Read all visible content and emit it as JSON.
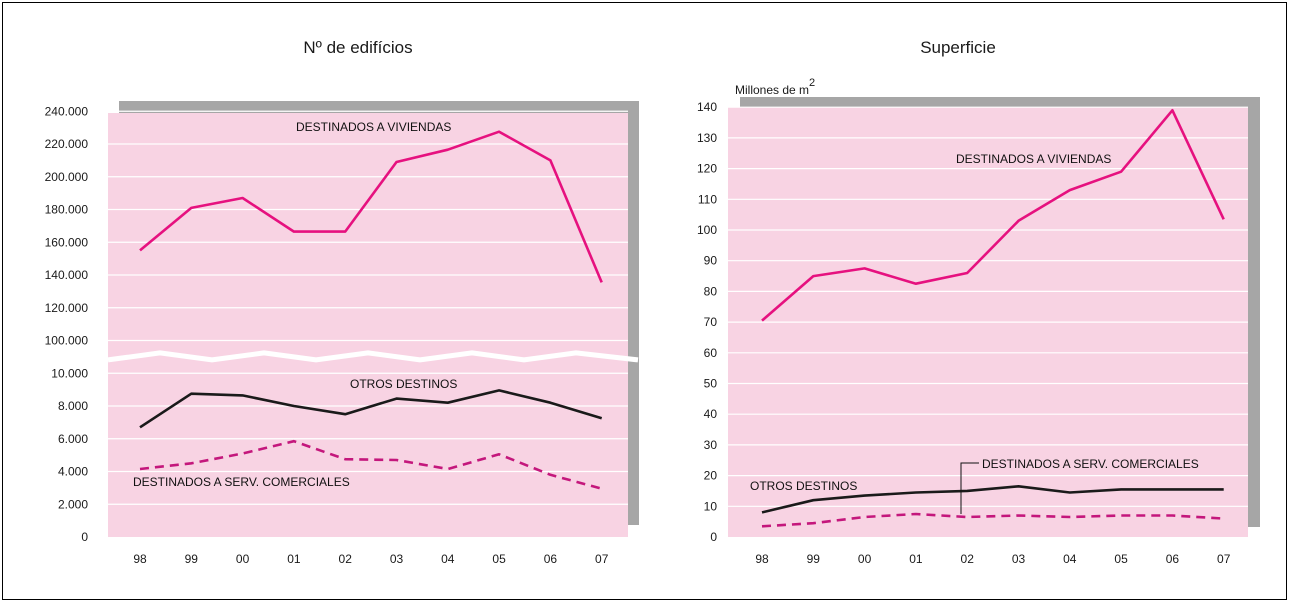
{
  "chart_data": [
    {
      "type": "line",
      "title": "Nº de edifícios",
      "x": [
        "98",
        "99",
        "00",
        "01",
        "02",
        "03",
        "04",
        "05",
        "06",
        "07"
      ],
      "y_ticks": [
        "0",
        "2.000",
        "4.000",
        "6.000",
        "8.000",
        "10.000",
        "100.000",
        "120.000",
        "140.000",
        "160.000",
        "180.000",
        "200.000",
        "220.000",
        "240.000"
      ],
      "axis_break": {
        "lower_segment": [
          0,
          10000
        ],
        "upper_segment": [
          100000,
          240000
        ]
      },
      "grid": true,
      "background": "#f8d3e3",
      "series": [
        {
          "label": "DESTINADOS A VIVIENDAS",
          "color": "#e6117f",
          "style": "solid",
          "values": [
            155000,
            181000,
            187000,
            166500,
            166500,
            209000,
            216500,
            227500,
            210000,
            135500
          ]
        },
        {
          "label": "OTROS DESTINOS",
          "color": "#1a1a1a",
          "style": "solid",
          "values": [
            6700,
            8750,
            8650,
            8000,
            7500,
            8450,
            8200,
            8950,
            8200,
            7250
          ]
        },
        {
          "label": "DESTINADOS A SERV. COMERCIALES",
          "color": "#c4177c",
          "style": "dashed",
          "values": [
            4150,
            4500,
            5100,
            5850,
            4750,
            4700,
            4150,
            5050,
            3800,
            2950
          ]
        }
      ]
    },
    {
      "type": "line",
      "title": "Superficie",
      "ylabel": "Millones de m",
      "ylabel_sup": "2",
      "x": [
        "98",
        "99",
        "00",
        "01",
        "02",
        "03",
        "04",
        "05",
        "06",
        "07"
      ],
      "y_ticks": [
        "0",
        "10",
        "20",
        "30",
        "40",
        "50",
        "60",
        "70",
        "80",
        "90",
        "100",
        "110",
        "120",
        "130",
        "140"
      ],
      "ylim": [
        0,
        140
      ],
      "grid": true,
      "background": "#f8d3e3",
      "series": [
        {
          "label": "DESTINADOS A VIVIENDAS",
          "color": "#e6117f",
          "style": "solid",
          "values": [
            70.5,
            85,
            87.5,
            82.5,
            86,
            103,
            113,
            119,
            139,
            103.5
          ]
        },
        {
          "label": "OTROS DESTINOS",
          "color": "#1a1a1a",
          "style": "solid",
          "values": [
            8,
            12,
            13.5,
            14.5,
            15,
            16.5,
            14.5,
            15.5,
            15.5,
            15.5
          ]
        },
        {
          "label": "DESTINADOS A SERV. COMERCIALES",
          "color": "#c4177c",
          "style": "dashed",
          "values": [
            3.5,
            4.5,
            6.5,
            7.5,
            6.5,
            7,
            6.5,
            7,
            7,
            6
          ]
        }
      ]
    }
  ]
}
